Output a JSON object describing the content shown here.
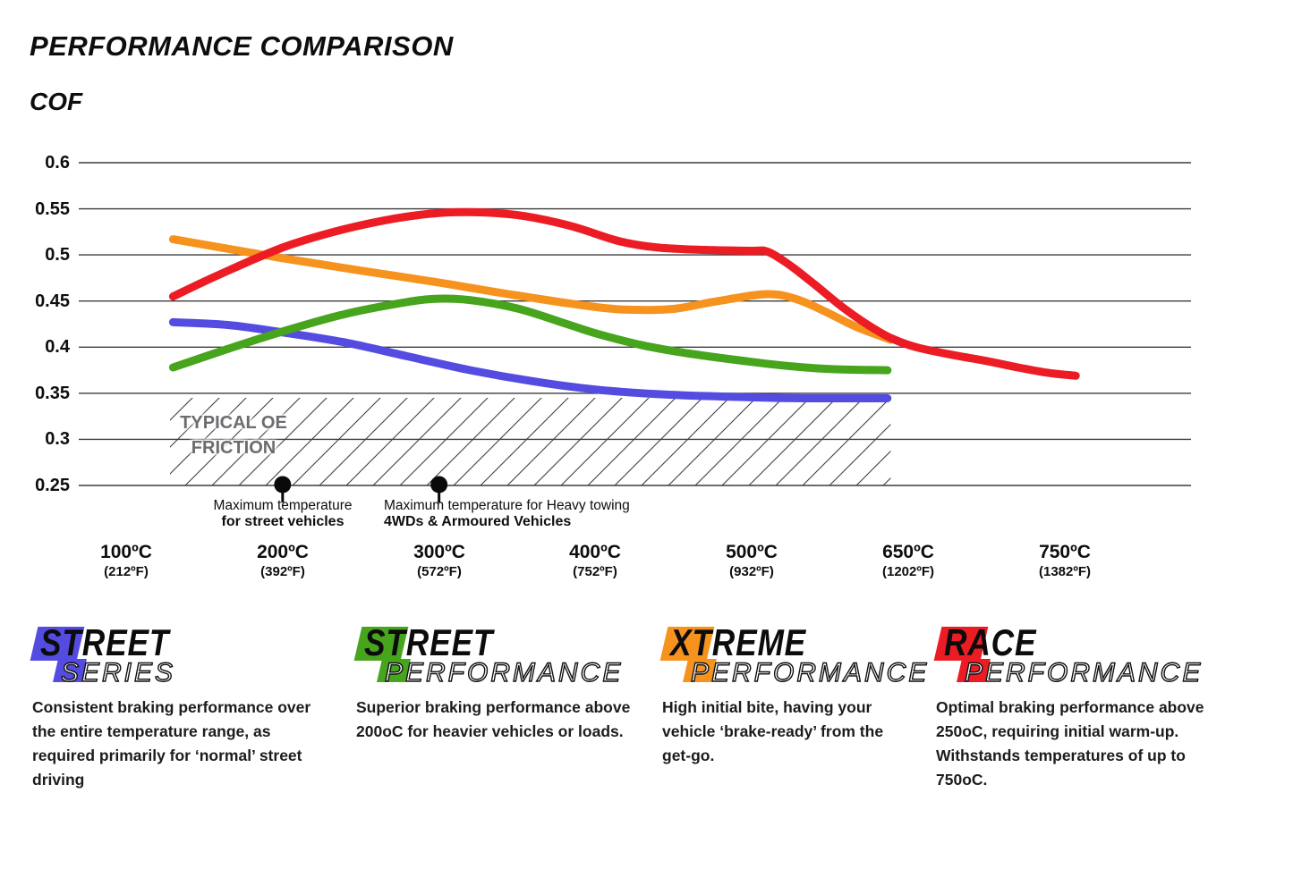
{
  "page": {
    "title": "PERFORMANCE COMPARISON",
    "y_axis_title": "COF"
  },
  "chart_data": {
    "type": "line",
    "title": "PERFORMANCE COMPARISON",
    "ylabel": "COF",
    "ylim": [
      0.25,
      0.6
    ],
    "grid": "horizontal",
    "y_ticks": [
      "0.6",
      "0.55",
      "0.5",
      "0.45",
      "0.4",
      "0.35",
      "0.3",
      "0.25"
    ],
    "y_tick_values": [
      0.6,
      0.55,
      0.5,
      0.45,
      0.4,
      0.35,
      0.3,
      0.25
    ],
    "x_tick_temps": [
      100,
      200,
      300,
      400,
      500,
      650,
      750
    ],
    "x_ticks": [
      {
        "c": "100ºC",
        "f": "(212ºF)"
      },
      {
        "c": "200ºC",
        "f": "(392ºF)"
      },
      {
        "c": "300ºC",
        "f": "(572ºF)"
      },
      {
        "c": "400ºC",
        "f": "(752ºF)"
      },
      {
        "c": "500ºC",
        "f": "(932ºF)"
      },
      {
        "c": "650ºC",
        "f": "(1202ºF)"
      },
      {
        "c": "750ºC",
        "f": "(1382ºF)"
      }
    ],
    "series": [
      {
        "name": "Street Series",
        "color": "#544be0",
        "points": [
          [
            130,
            0.427
          ],
          [
            165,
            0.424
          ],
          [
            200,
            0.416
          ],
          [
            240,
            0.405
          ],
          [
            280,
            0.39
          ],
          [
            320,
            0.375
          ],
          [
            360,
            0.363
          ],
          [
            400,
            0.354
          ],
          [
            440,
            0.349
          ],
          [
            480,
            0.3465
          ],
          [
            520,
            0.345
          ],
          [
            560,
            0.3445
          ],
          [
            630,
            0.3445
          ]
        ]
      },
      {
        "name": "Street Performance",
        "color": "#47a41d",
        "points": [
          [
            130,
            0.378
          ],
          [
            165,
            0.398
          ],
          [
            200,
            0.417
          ],
          [
            240,
            0.436
          ],
          [
            280,
            0.449
          ],
          [
            300,
            0.4525
          ],
          [
            320,
            0.451
          ],
          [
            350,
            0.442
          ],
          [
            380,
            0.426
          ],
          [
            400,
            0.415
          ],
          [
            430,
            0.402
          ],
          [
            460,
            0.393
          ],
          [
            500,
            0.384
          ],
          [
            540,
            0.379
          ],
          [
            580,
            0.376
          ],
          [
            630,
            0.375
          ]
        ]
      },
      {
        "name": "Xtreme Performance",
        "color": "#f6921e",
        "points": [
          [
            130,
            0.517
          ],
          [
            200,
            0.4965
          ],
          [
            250,
            0.483
          ],
          [
            300,
            0.47
          ],
          [
            350,
            0.456
          ],
          [
            400,
            0.4435
          ],
          [
            425,
            0.4405
          ],
          [
            450,
            0.4415
          ],
          [
            475,
            0.449
          ],
          [
            500,
            0.456
          ],
          [
            515,
            0.4575
          ],
          [
            530,
            0.456
          ],
          [
            550,
            0.449
          ],
          [
            575,
            0.436
          ],
          [
            600,
            0.422
          ],
          [
            633,
            0.408
          ]
        ]
      },
      {
        "name": "Race Performance",
        "color": "#ec1c24",
        "points": [
          [
            130,
            0.455
          ],
          [
            160,
            0.479
          ],
          [
            200,
            0.508
          ],
          [
            235,
            0.526
          ],
          [
            270,
            0.539
          ],
          [
            300,
            0.5455
          ],
          [
            330,
            0.546
          ],
          [
            355,
            0.542
          ],
          [
            385,
            0.531
          ],
          [
            415,
            0.515
          ],
          [
            440,
            0.508
          ],
          [
            470,
            0.5055
          ],
          [
            500,
            0.5045
          ],
          [
            515,
            0.5035
          ],
          [
            535,
            0.49
          ],
          [
            560,
            0.468
          ],
          [
            585,
            0.445
          ],
          [
            610,
            0.425
          ],
          [
            633,
            0.41
          ],
          [
            655,
            0.4
          ],
          [
            680,
            0.391
          ],
          [
            700,
            0.385
          ],
          [
            720,
            0.378
          ],
          [
            740,
            0.372
          ],
          [
            757,
            0.369
          ]
        ]
      }
    ],
    "oe_region": {
      "label_line1": "TYPICAL OE",
      "label_line2": "FRICTION",
      "temp_range": [
        128,
        633
      ],
      "cof_range": [
        0.25,
        0.345
      ]
    },
    "markers": [
      {
        "temp": 200,
        "line1": "Maximum temperature",
        "line2": "for street vehicles",
        "align": "center"
      },
      {
        "temp": 300,
        "line1": "Maximum temperature for Heavy towing",
        "line2": "4WDs & Armoured Vehicles",
        "align": "left"
      }
    ]
  },
  "legend": [
    {
      "word1": "STREET",
      "word2": "SERIES",
      "color": "#544be0",
      "desc_width": 330,
      "desc": "Consistent braking performance over the entire temperature range, as required primarily for ‘normal’ street driving"
    },
    {
      "word1": "STREET",
      "word2": "PERFORMANCE",
      "color": "#47a41d",
      "desc_width": 325,
      "desc": "Superior braking performance above 200oC for heavier vehicles or loads."
    },
    {
      "word1": "XTREME",
      "word2": "PERFORMANCE",
      "color": "#f6921e",
      "desc_width": 275,
      "desc": "High initial bite, having your vehicle ‘brake-ready’ from the get-go."
    },
    {
      "word1": "RACE",
      "word2": "PERFORMANCE",
      "color": "#ec1c24",
      "desc_width": 320,
      "desc": "Optimal braking performance above 250oC, requiring initial warm-up. Withstands temperatures of up to 750oC."
    }
  ]
}
